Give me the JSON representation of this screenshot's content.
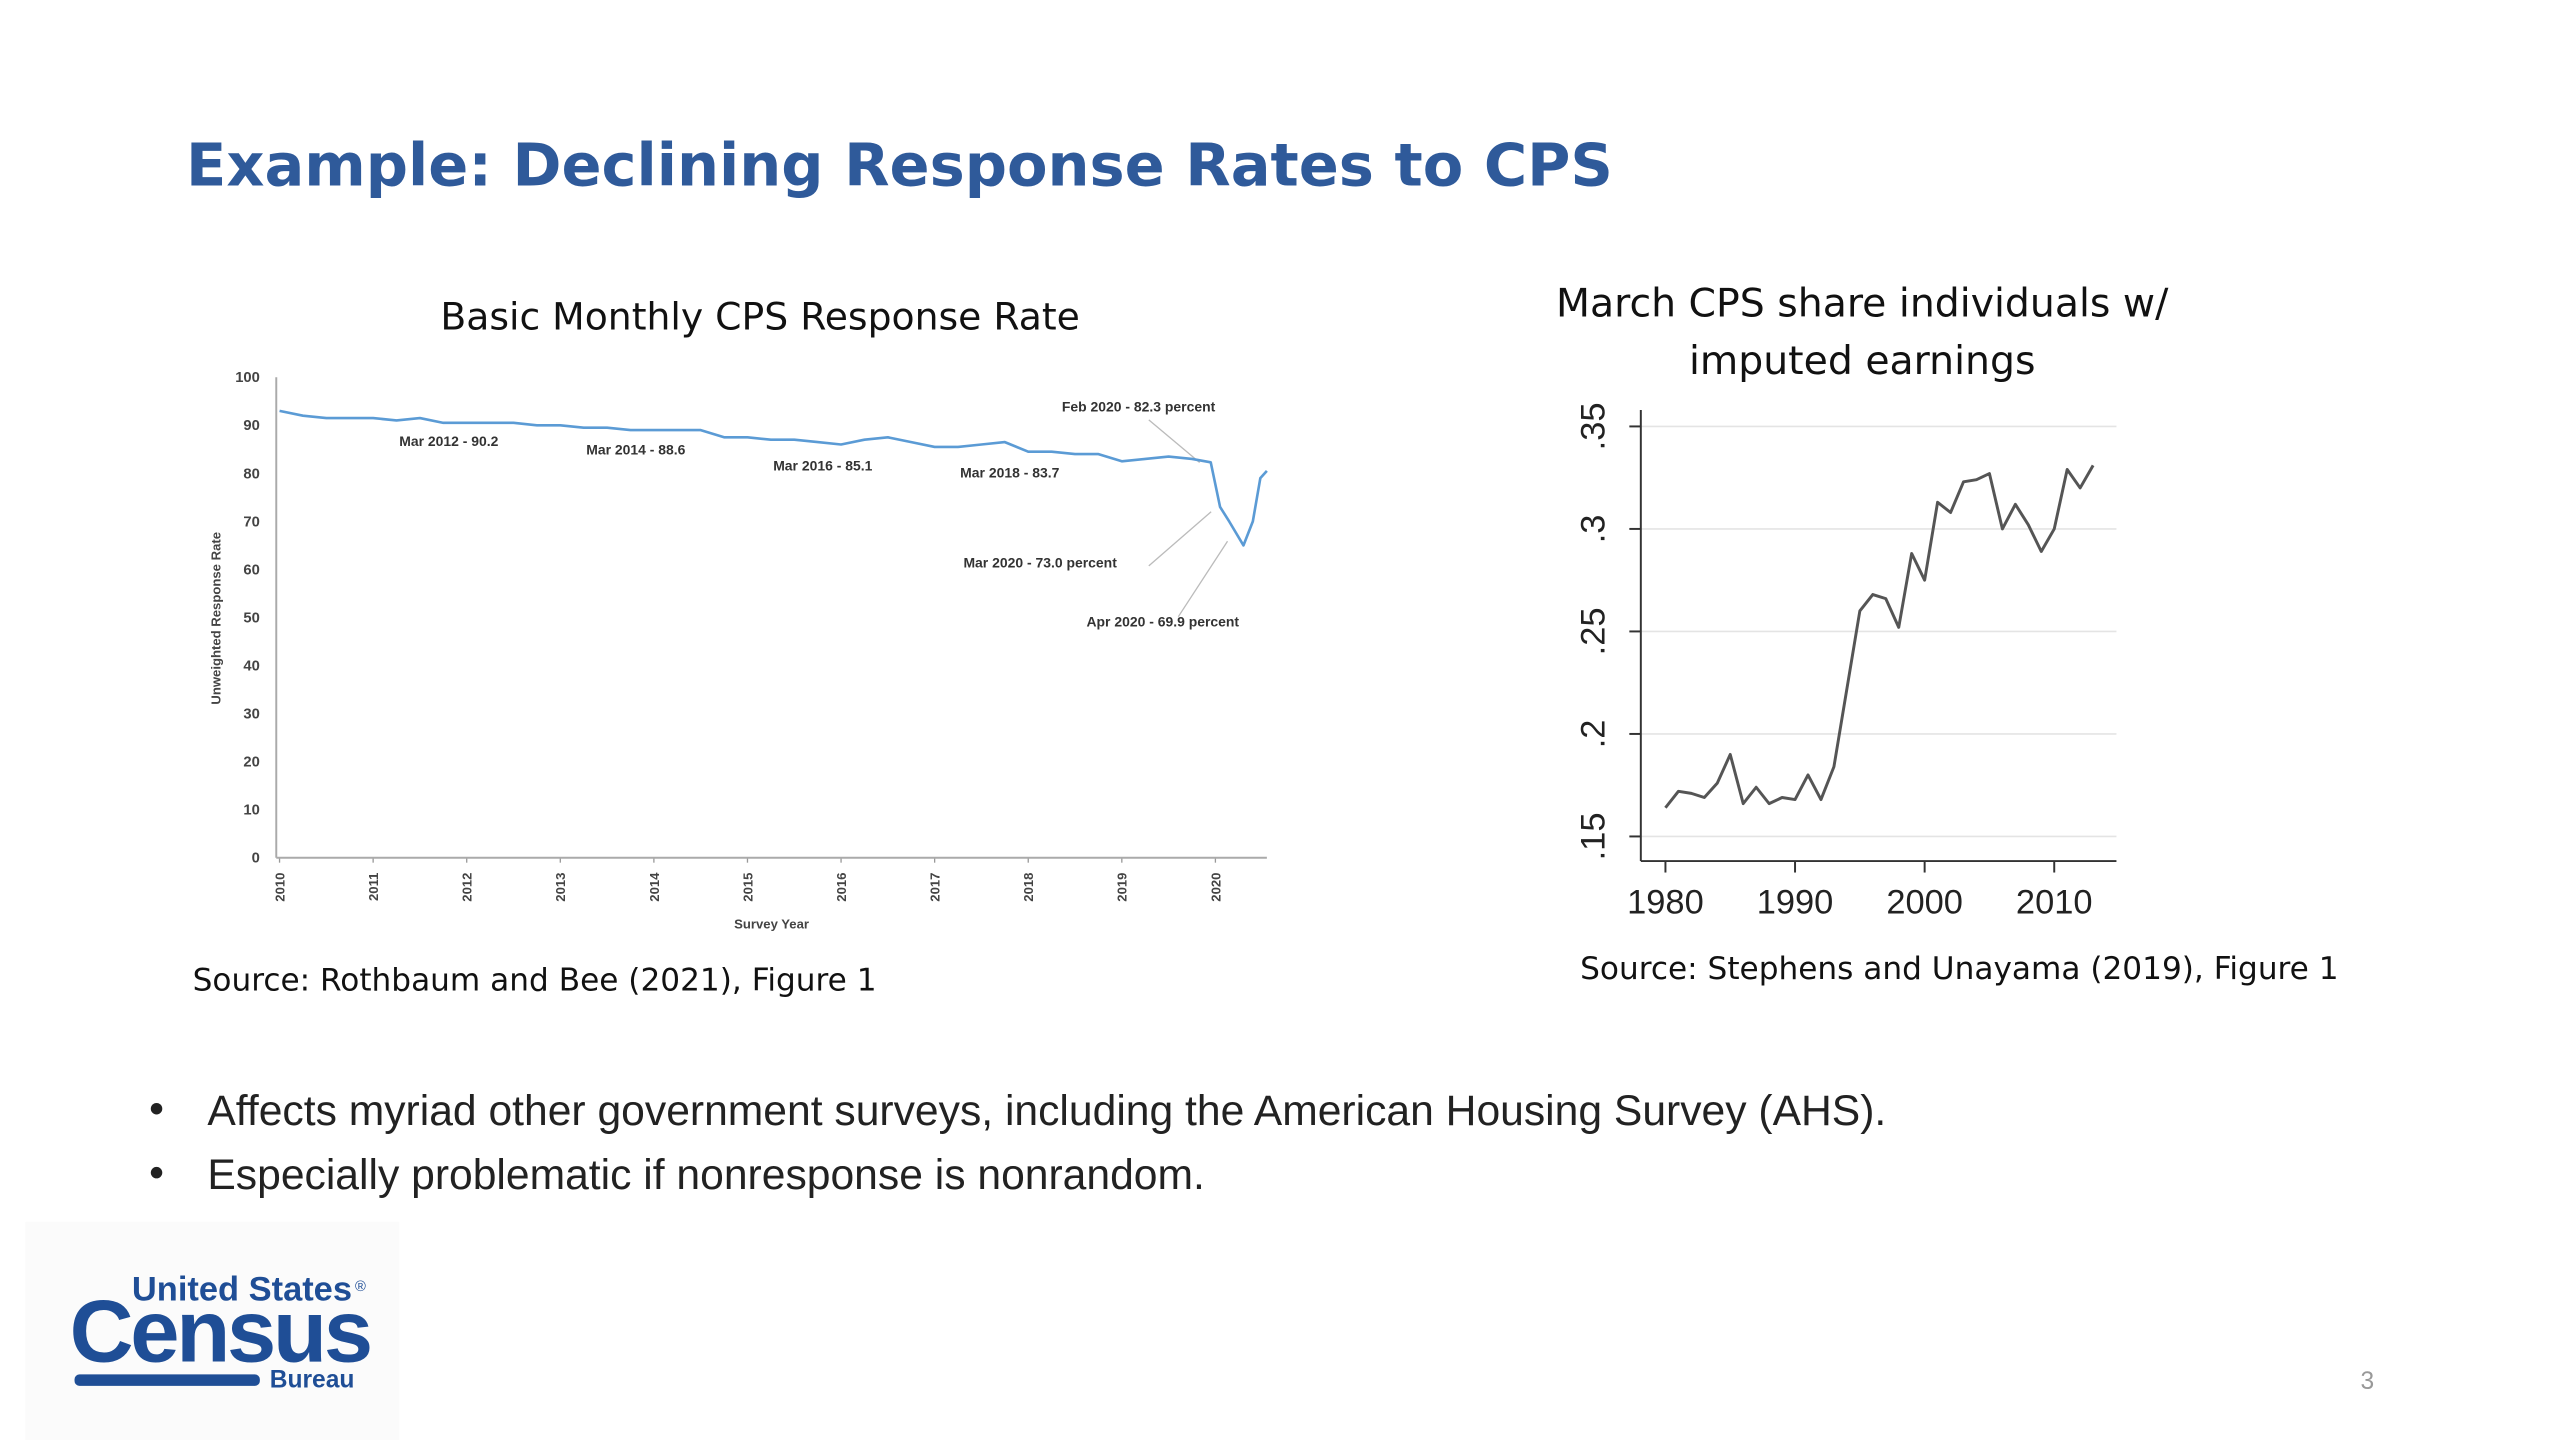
{
  "slide": {
    "title": "Example: Declining Response Rates to CPS",
    "bullets": [
      "Affects myriad other government surveys, including the American Housing Survey (AHS).",
      "Especially problematic if nonresponse is nonrandom."
    ],
    "page_number": "3",
    "logo": {
      "line1": "United States",
      "mark": "®",
      "name": "Census",
      "line3": "Bureau"
    }
  },
  "chart_data": [
    {
      "type": "line",
      "title": "Basic Monthly CPS Response Rate",
      "xlabel": "Survey Year",
      "ylabel": "Unweighted Response Rate",
      "source": "Source: Rothbaum and Bee (2021), Figure 1",
      "color": "#5b9bd5",
      "grid": false,
      "x": [
        2010,
        2010.25,
        2010.5,
        2010.75,
        2011,
        2011.25,
        2011.5,
        2011.75,
        2012,
        2012.25,
        2012.5,
        2012.75,
        2013,
        2013.25,
        2013.5,
        2013.75,
        2014,
        2014.25,
        2014.5,
        2014.75,
        2015,
        2015.25,
        2015.5,
        2015.75,
        2016,
        2016.25,
        2016.5,
        2016.75,
        2017,
        2017.25,
        2017.5,
        2017.75,
        2018,
        2018.25,
        2018.5,
        2018.75,
        2019,
        2019.25,
        2019.5,
        2019.75,
        2019.95,
        2020.05,
        2020.15,
        2020.3,
        2020.4,
        2020.48,
        2020.55
      ],
      "values": [
        93,
        92,
        91.5,
        91.5,
        91.5,
        91,
        91.5,
        90.5,
        90.5,
        90.5,
        90.5,
        90,
        90,
        89.5,
        89.5,
        89,
        89,
        89,
        89,
        87.5,
        87.5,
        87,
        87,
        86.5,
        86,
        87,
        87.5,
        86.5,
        85.5,
        85.5,
        86,
        86.5,
        84.5,
        84.5,
        84,
        84,
        82.5,
        83,
        83.5,
        83,
        82.3,
        73,
        69.9,
        65,
        70,
        79,
        80.5
      ],
      "xlim": [
        2010,
        2020.55
      ],
      "xticks": [
        2010,
        2011,
        2012,
        2013,
        2014,
        2015,
        2016,
        2017,
        2018,
        2019,
        2020
      ],
      "ylim": [
        0,
        100
      ],
      "yticks": [
        0,
        10,
        20,
        30,
        40,
        50,
        60,
        70,
        80,
        90,
        100
      ],
      "annotations": [
        "Mar 2012 - 90.2",
        "Mar 2014 - 88.6",
        "Mar 2016 - 85.1",
        "Mar 2018 - 83.7",
        "Feb 2020 - 82.3 percent",
        "Mar 2020 - 73.0 percent",
        "Apr 2020 - 69.9 percent"
      ]
    },
    {
      "type": "line",
      "title": "March CPS share individuals w/ imputed earnings",
      "source": "Source: Stephens and Unayama (2019), Figure 1",
      "color": "#555555",
      "grid": true,
      "x": [
        1980,
        1981,
        1982,
        1983,
        1984,
        1985,
        1986,
        1987,
        1988,
        1989,
        1990,
        1991,
        1992,
        1993,
        1994,
        1995,
        1996,
        1997,
        1998,
        1999,
        2000,
        2001,
        2002,
        2003,
        2004,
        2005,
        2006,
        2007,
        2008,
        2009,
        2010,
        2011,
        2012,
        2013
      ],
      "values": [
        0.164,
        0.172,
        0.171,
        0.169,
        0.176,
        0.19,
        0.166,
        0.174,
        0.166,
        0.169,
        0.168,
        0.18,
        0.168,
        0.184,
        0.222,
        0.26,
        0.268,
        0.266,
        0.252,
        0.288,
        0.275,
        0.313,
        0.308,
        0.323,
        0.324,
        0.327,
        0.3,
        0.312,
        0.302,
        0.289,
        0.3,
        0.329,
        0.32,
        0.331
      ],
      "xlim": [
        1978.1,
        2014.8
      ],
      "xticks": [
        1980,
        1990,
        2000,
        2010
      ],
      "ylim": [
        0.138,
        0.358
      ],
      "yticks": [
        {
          "value": 0.15,
          "label": ".15"
        },
        {
          "value": 0.2,
          "label": ".2"
        },
        {
          "value": 0.25,
          "label": ".25"
        },
        {
          "value": 0.3,
          "label": ".3"
        },
        {
          "value": 0.35,
          "label": ".35"
        }
      ]
    }
  ]
}
